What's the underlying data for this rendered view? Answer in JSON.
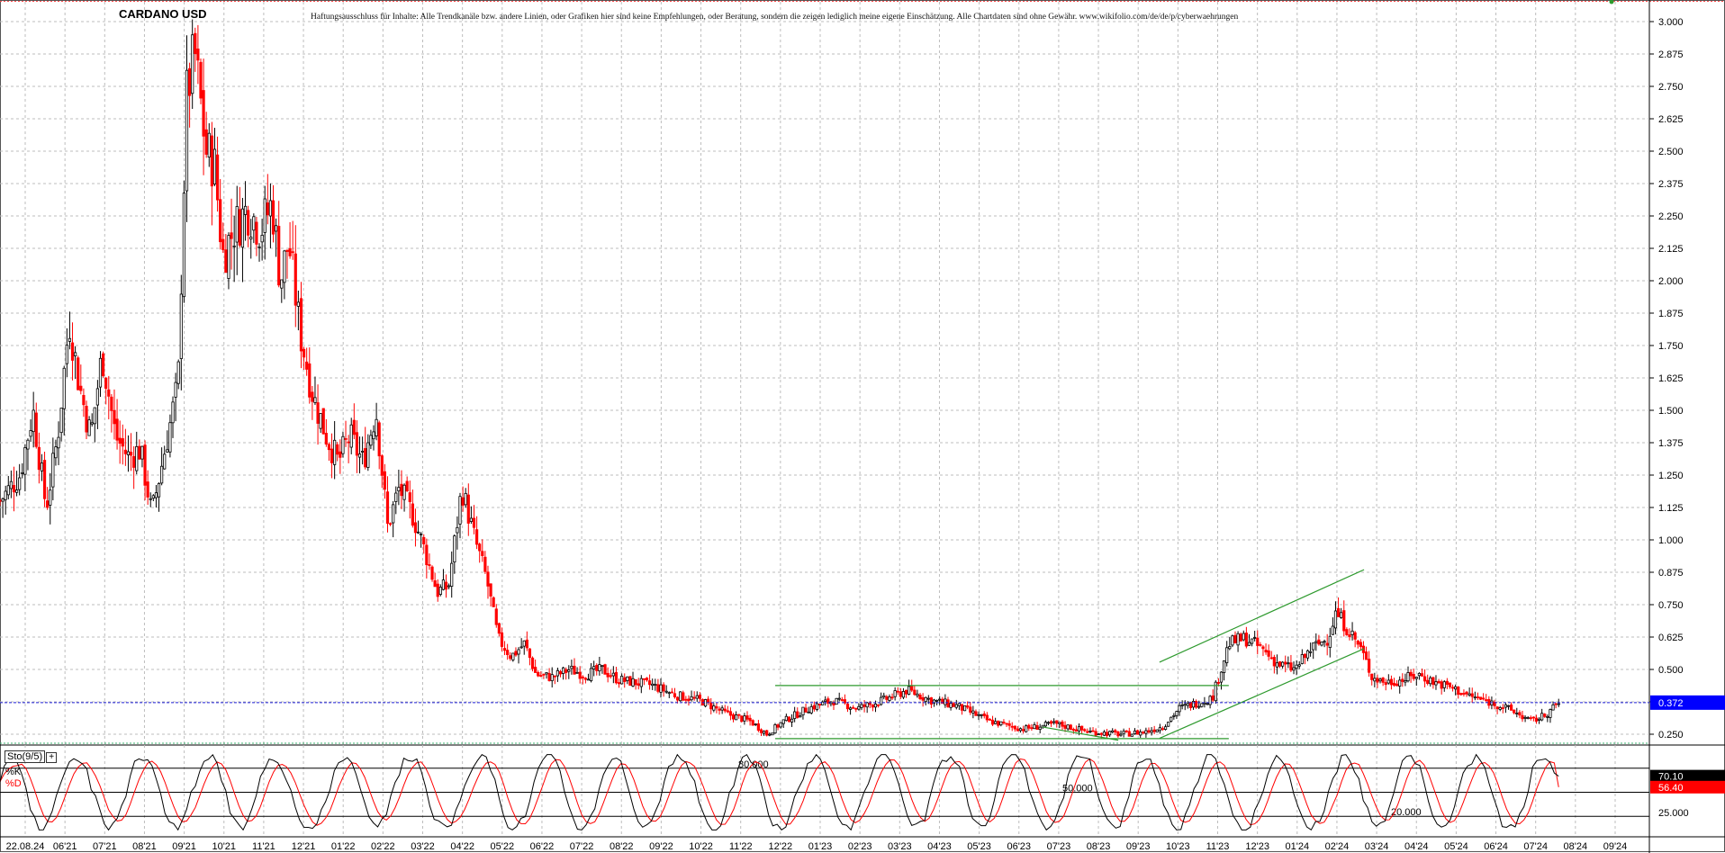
{
  "header": {
    "title": "CARDANO USD",
    "disclaimer": "Haftungsausschluss für Inhalte: Alle Trendkanäle bzw. andere Linien, oder Grafiken hier sind keine Empfehlungen, oder Beratung, sondern die zeigen lediglich meine eigene Einschätzung. Alle Chartdaten sind ohne Gewähr. www.wikifolio.com/de/de/p/cyberwaehrungen"
  },
  "indicator": {
    "name": "Sto(9/5)",
    "plus": "+",
    "k_label": "%K",
    "d_label": "%D",
    "level_upper": "80.000",
    "level_mid": "50.000",
    "level_lower": "20.000",
    "axis_label": "25.000",
    "k_value": "70.10",
    "d_value": "56.40"
  },
  "price_marker": "0.372",
  "colors": {
    "up": "#000000",
    "down": "#ff0000",
    "trend": "#2e9a2e",
    "price_line": "#1f1fd6",
    "marker_bg": "#0000ff",
    "k_line": "#000000",
    "d_line": "#ff0000"
  },
  "chart_data": {
    "type": "candlestick",
    "title": "CARDANO USD",
    "y_ticks": [
      "3.000",
      "2.875",
      "2.750",
      "2.625",
      "2.500",
      "2.375",
      "2.250",
      "2.125",
      "2.000",
      "1.875",
      "1.750",
      "1.625",
      "1.500",
      "1.375",
      "1.250",
      "1.125",
      "1.000",
      "0.875",
      "0.750",
      "0.625",
      "0.500",
      "0.375",
      "0.250"
    ],
    "ylim": [
      0.21,
      3.07
    ],
    "x_ticks": [
      "22.08.24",
      "06'21",
      "07'21",
      "08'21",
      "09'21",
      "10'21",
      "11'21",
      "12'21",
      "01'22",
      "02'22",
      "03'22",
      "04'22",
      "05'22",
      "06'22",
      "07'22",
      "08'22",
      "09'22",
      "10'22",
      "11'22",
      "12'22",
      "01'23",
      "02'23",
      "03'23",
      "04'23",
      "05'23",
      "06'23",
      "07'23",
      "08'23",
      "09'23",
      "10'23",
      "11'23",
      "12'23",
      "01'24",
      "02'24",
      "03'24",
      "04'24",
      "05'24",
      "06'24",
      "07'24",
      "08'24",
      "09'24"
    ],
    "current_price": 0.372,
    "price_path": [
      [
        0,
        1.15
      ],
      [
        0.012,
        1.25
      ],
      [
        0.02,
        1.5
      ],
      [
        0.028,
        1.12
      ],
      [
        0.035,
        1.4
      ],
      [
        0.042,
        1.85
      ],
      [
        0.048,
        1.6
      ],
      [
        0.055,
        1.4
      ],
      [
        0.062,
        1.72
      ],
      [
        0.07,
        1.4
      ],
      [
        0.078,
        1.32
      ],
      [
        0.085,
        1.35
      ],
      [
        0.092,
        1.1
      ],
      [
        0.1,
        1.35
      ],
      [
        0.108,
        1.6
      ],
      [
        0.113,
        2.7
      ],
      [
        0.118,
        2.88
      ],
      [
        0.125,
        2.5
      ],
      [
        0.13,
        2.45
      ],
      [
        0.135,
        2.1
      ],
      [
        0.142,
        2.2
      ],
      [
        0.15,
        2.28
      ],
      [
        0.158,
        2.2
      ],
      [
        0.165,
        2.3
      ],
      [
        0.17,
        2.0
      ],
      [
        0.175,
        2.15
      ],
      [
        0.182,
        1.8
      ],
      [
        0.19,
        1.55
      ],
      [
        0.198,
        1.4
      ],
      [
        0.205,
        1.3
      ],
      [
        0.212,
        1.4
      ],
      [
        0.22,
        1.3
      ],
      [
        0.228,
        1.5
      ],
      [
        0.235,
        1.05
      ],
      [
        0.242,
        1.2
      ],
      [
        0.25,
        1.1
      ],
      [
        0.258,
        0.95
      ],
      [
        0.265,
        0.8
      ],
      [
        0.272,
        0.82
      ],
      [
        0.28,
        1.2
      ],
      [
        0.288,
        1.0
      ],
      [
        0.295,
        0.85
      ],
      [
        0.302,
        0.62
      ],
      [
        0.31,
        0.55
      ],
      [
        0.318,
        0.6
      ],
      [
        0.325,
        0.48
      ],
      [
        0.335,
        0.47
      ],
      [
        0.345,
        0.5
      ],
      [
        0.355,
        0.48
      ],
      [
        0.365,
        0.5
      ],
      [
        0.375,
        0.46
      ],
      [
        0.385,
        0.45
      ],
      [
        0.395,
        0.44
      ],
      [
        0.41,
        0.4
      ],
      [
        0.425,
        0.38
      ],
      [
        0.44,
        0.33
      ],
      [
        0.455,
        0.3
      ],
      [
        0.465,
        0.25
      ],
      [
        0.475,
        0.3
      ],
      [
        0.49,
        0.35
      ],
      [
        0.505,
        0.38
      ],
      [
        0.52,
        0.35
      ],
      [
        0.535,
        0.38
      ],
      [
        0.55,
        0.42
      ],
      [
        0.565,
        0.38
      ],
      [
        0.58,
        0.36
      ],
      [
        0.6,
        0.3
      ],
      [
        0.62,
        0.27
      ],
      [
        0.64,
        0.29
      ],
      [
        0.66,
        0.26
      ],
      [
        0.68,
        0.25
      ],
      [
        0.695,
        0.26
      ],
      [
        0.705,
        0.28
      ],
      [
        0.715,
        0.35
      ],
      [
        0.725,
        0.37
      ],
      [
        0.735,
        0.39
      ],
      [
        0.745,
        0.6
      ],
      [
        0.755,
        0.62
      ],
      [
        0.765,
        0.58
      ],
      [
        0.775,
        0.52
      ],
      [
        0.785,
        0.5
      ],
      [
        0.795,
        0.58
      ],
      [
        0.805,
        0.62
      ],
      [
        0.81,
        0.72
      ],
      [
        0.818,
        0.65
      ],
      [
        0.825,
        0.58
      ],
      [
        0.832,
        0.47
      ],
      [
        0.84,
        0.45
      ],
      [
        0.85,
        0.46
      ],
      [
        0.86,
        0.48
      ],
      [
        0.87,
        0.45
      ],
      [
        0.88,
        0.43
      ],
      [
        0.89,
        0.4
      ],
      [
        0.9,
        0.38
      ],
      [
        0.91,
        0.36
      ],
      [
        0.92,
        0.33
      ],
      [
        0.928,
        0.3
      ],
      [
        0.936,
        0.32
      ],
      [
        0.945,
        0.37
      ]
    ],
    "trend_lines": [
      {
        "name": "range-top",
        "p1": [
          0.47,
          0.438
        ],
        "p2": [
          0.745,
          0.438
        ]
      },
      {
        "name": "range-bottom",
        "p1": [
          0.47,
          0.233
        ],
        "p2": [
          0.745,
          0.233
        ]
      },
      {
        "name": "channel-upper",
        "p1": [
          0.703,
          0.528
        ],
        "p2": [
          0.827,
          0.885
        ]
      },
      {
        "name": "channel-lower",
        "p1": [
          0.703,
          0.234
        ],
        "p2": [
          0.827,
          0.58
        ]
      },
      {
        "name": "small-down",
        "p1": [
          0.632,
          0.278
        ],
        "p2": [
          0.678,
          0.227
        ]
      }
    ],
    "stochastic": {
      "upper": 80,
      "lower": 20,
      "k_last": 70.1,
      "d_last": 56.4
    }
  }
}
